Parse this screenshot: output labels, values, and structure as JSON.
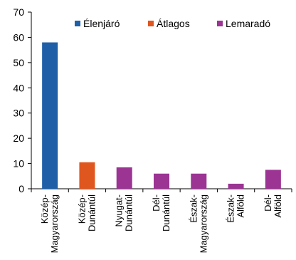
{
  "chart_data": {
    "type": "bar",
    "title": "",
    "xlabel": "",
    "ylabel": "",
    "ylim": [
      0,
      70
    ],
    "yticks": [
      0,
      10,
      20,
      30,
      40,
      50,
      60,
      70
    ],
    "grid": false,
    "legend_position": "top",
    "categories": [
      [
        "Közép-",
        "Magyarország"
      ],
      [
        "Közép-",
        "Dunántúl"
      ],
      [
        "Nyugat-",
        "Dunántúl"
      ],
      [
        "Dél-",
        "Dunántúl"
      ],
      [
        "Észak-",
        "Magyarország"
      ],
      [
        "Észak-",
        "Alföld"
      ],
      [
        "Dél-",
        "Alföld"
      ]
    ],
    "series": [
      {
        "name": "Élenjáró",
        "color": "#1f5fa8"
      },
      {
        "name": "Átlagos",
        "color": "#e0561f"
      },
      {
        "name": "Lemaradó",
        "color": "#9b3493"
      }
    ],
    "values": [
      58,
      10.5,
      8.5,
      6,
      6,
      2,
      7.5
    ],
    "bar_series": [
      0,
      1,
      2,
      2,
      2,
      2,
      2
    ]
  }
}
